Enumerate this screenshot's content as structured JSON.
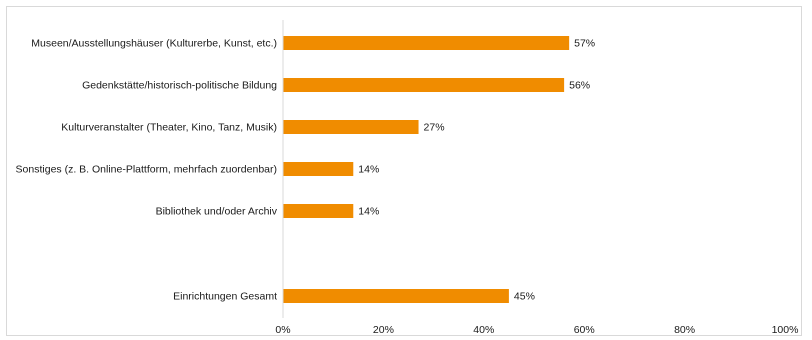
{
  "chart_data": {
    "type": "bar",
    "orientation": "horizontal",
    "categories": [
      "Museen/Ausstellungshäuser (Kulturerbe, Kunst, etc.)",
      "Gedenkstätte/historisch-politische Bildung",
      "Kulturveranstalter (Theater, Kino, Tanz, Musik)",
      "Sonstiges (z. B. Online-Plattform, mehrfach zuordenbar)",
      "Bibliothek und/oder Archiv",
      "Einrichtungen Gesamt"
    ],
    "values": [
      57,
      56,
      27,
      14,
      14,
      45
    ],
    "value_labels": [
      "57%",
      "56%",
      "27%",
      "14%",
      "14%",
      "45%"
    ],
    "xlim": [
      0,
      100
    ],
    "xticks": [
      0,
      20,
      40,
      60,
      80,
      100
    ],
    "xtick_labels": [
      "0%",
      "20%",
      "40%",
      "60%",
      "80%",
      "100%"
    ],
    "title": "",
    "xlabel": "",
    "ylabel": "",
    "grid": false,
    "legend": "none",
    "bar_color": "#f08c00"
  }
}
